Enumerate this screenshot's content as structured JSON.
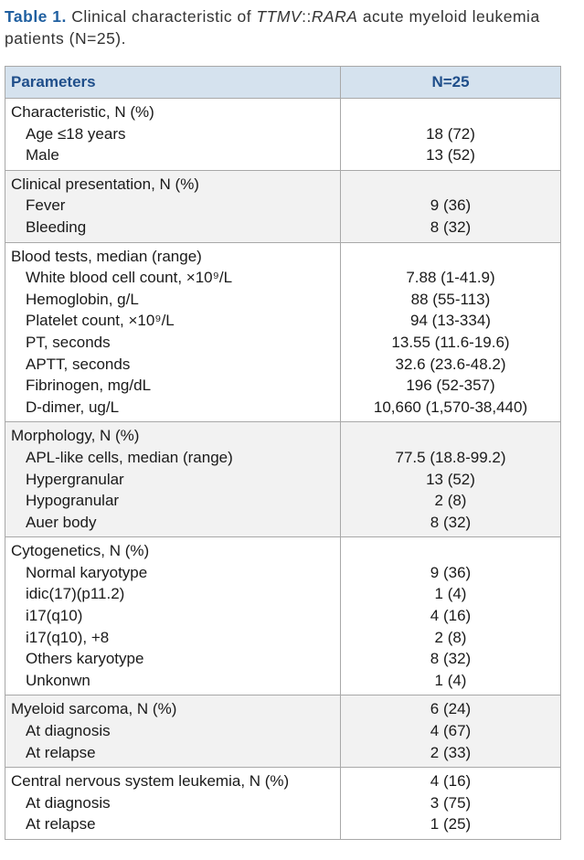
{
  "caption": {
    "label": "Table 1.",
    "text_1": "Clinical characteristic of",
    "gene_1": "TTMV",
    "separator": "::",
    "gene_2": "RARA",
    "text_2": "acute myeloid leukemia patients (N=25)."
  },
  "table": {
    "header": [
      "Parameters",
      "N=25"
    ],
    "groups": [
      {
        "title": "Characteristic, N (%)",
        "rows": [
          [
            "Age ≤18 years",
            "18 (72)"
          ],
          [
            "Male",
            "13 (52)"
          ]
        ]
      },
      {
        "title": "Clinical presentation, N (%)",
        "rows": [
          [
            "Fever",
            "9 (36)"
          ],
          [
            "Bleeding",
            "8 (32)"
          ]
        ]
      },
      {
        "title": "Blood tests, median (range)",
        "rows": [
          [
            "White blood cell count, ×10⁹/L",
            "7.88 (1-41.9)"
          ],
          [
            "Hemoglobin, g/L",
            "88 (55-113)"
          ],
          [
            "Platelet count, ×10⁹/L",
            "94 (13-334)"
          ],
          [
            "PT, seconds",
            "13.55 (11.6-19.6)"
          ],
          [
            "APTT, seconds",
            "32.6 (23.6-48.2)"
          ],
          [
            "Fibrinogen, mg/dL",
            "196 (52-357)"
          ],
          [
            "D-dimer, ug/L",
            "10,660 (1,570-38,440)"
          ]
        ]
      },
      {
        "title": "Morphology, N (%)",
        "rows": [
          [
            "APL-like cells, median (range)",
            "77.5 (18.8-99.2)"
          ],
          [
            "Hypergranular",
            "13 (52)"
          ],
          [
            "Hypogranular",
            "2 (8)"
          ],
          [
            "Auer body",
            "8 (32)"
          ]
        ]
      },
      {
        "title": "Cytogenetics, N (%)",
        "rows": [
          [
            "Normal karyotype",
            "9 (36)"
          ],
          [
            "idic(17)(p11.2)",
            "1 (4)"
          ],
          [
            "i17(q10)",
            "4 (16)"
          ],
          [
            "i17(q10), +8",
            "2 (8)"
          ],
          [
            "Others karyotype",
            "8 (32)"
          ],
          [
            "Unkonwn",
            "1 (4)"
          ]
        ]
      },
      {
        "title": "Myeloid sarcoma, N (%)",
        "value": "6 (24)",
        "rows": [
          [
            "At diagnosis",
            "4 (67)"
          ],
          [
            "At relapse",
            "2 (33)"
          ]
        ]
      },
      {
        "title": "Central nervous system leukemia, N (%)",
        "value": "4 (16)",
        "rows": [
          [
            "At diagnosis",
            "3 (75)"
          ],
          [
            "At relapse",
            "1 (25)"
          ]
        ]
      }
    ]
  }
}
